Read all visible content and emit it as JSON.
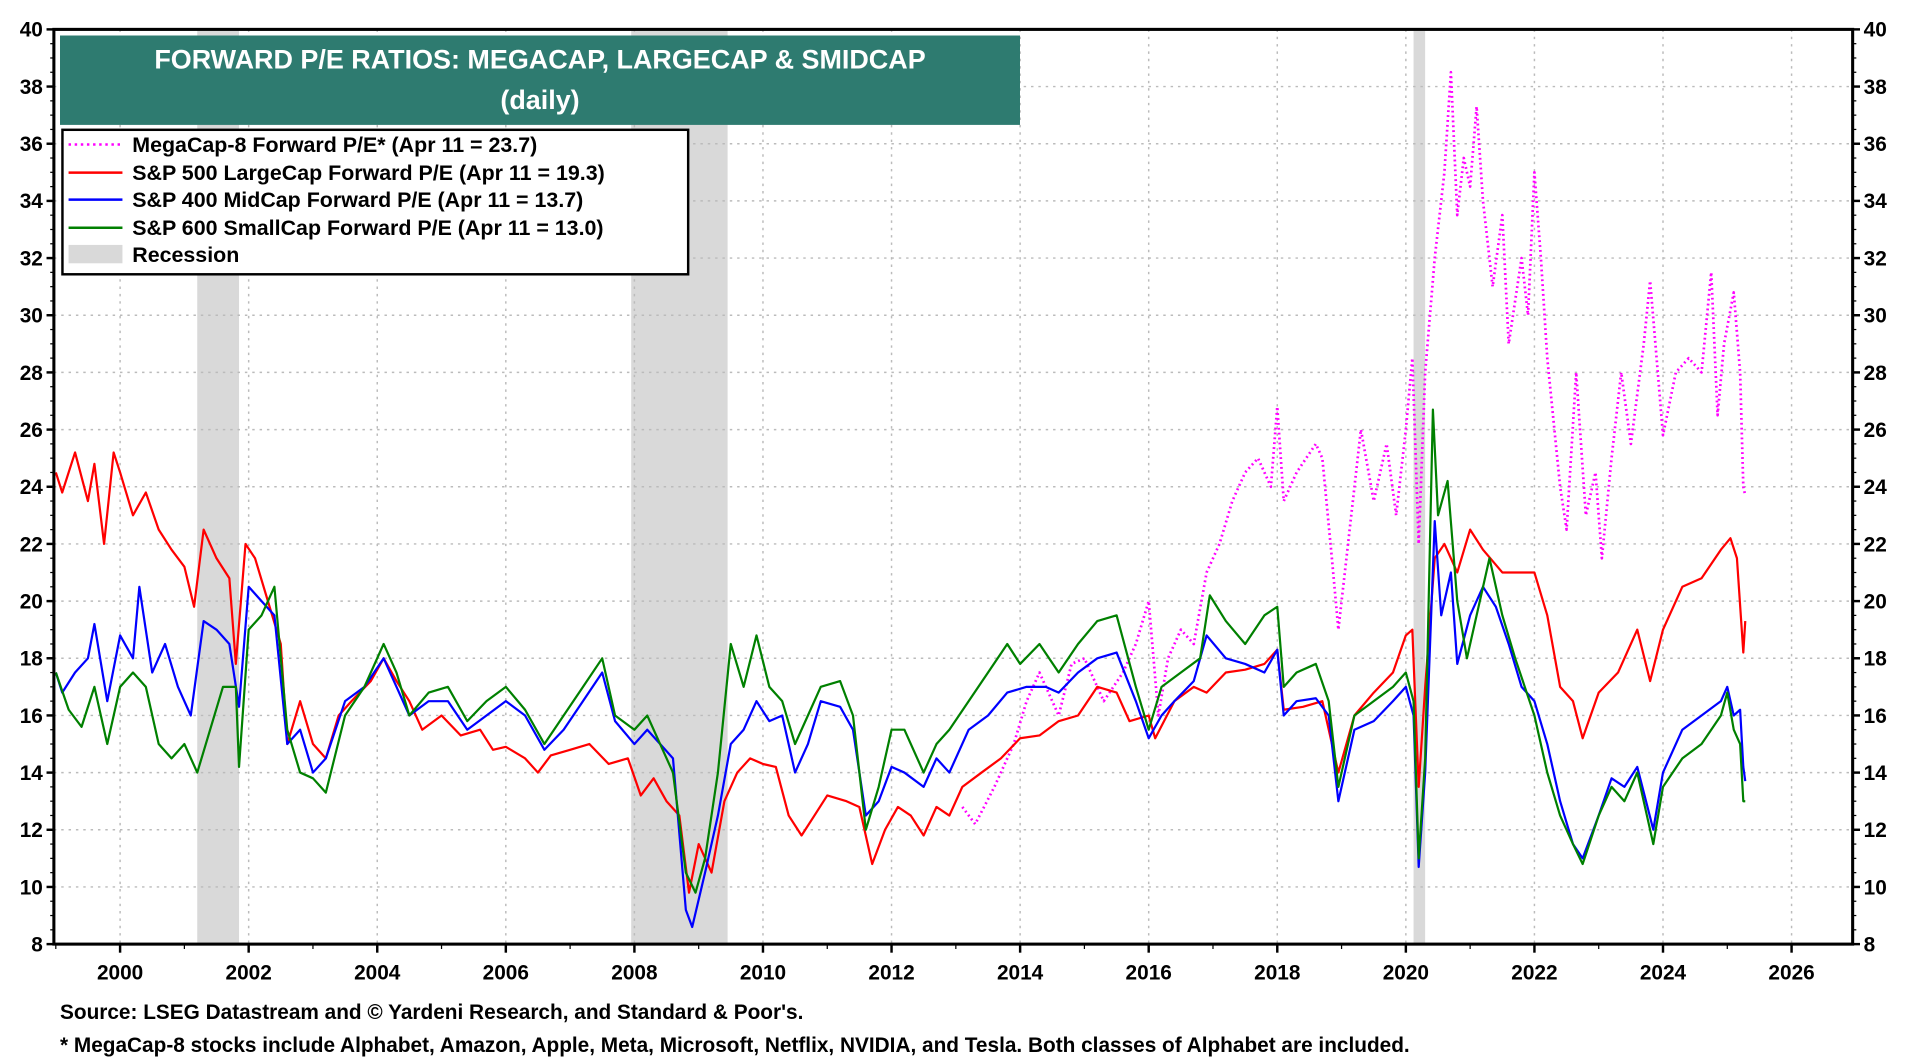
{
  "chart_data": {
    "type": "line",
    "title": "FORWARD P/E RATIOS: MEGACAP, LARGECAP & SMIDCAP",
    "subtitle": "(daily)",
    "xlim": [
      1998.97,
      2026.95
    ],
    "ylim": [
      8,
      40
    ],
    "grid": true,
    "legend_placement": "top-left",
    "x_ticks": [
      2000,
      2002,
      2004,
      2006,
      2008,
      2010,
      2012,
      2014,
      2016,
      2018,
      2020,
      2022,
      2024,
      2026
    ],
    "x_tick_labels": [
      "2000",
      "2002",
      "2004",
      "2006",
      "2008",
      "2010",
      "2012",
      "2014",
      "2016",
      "2018",
      "2020",
      "2022",
      "2024",
      "2026"
    ],
    "y_ticks": [
      8,
      10,
      12,
      14,
      16,
      18,
      20,
      22,
      24,
      26,
      28,
      30,
      32,
      34,
      36,
      38,
      40
    ],
    "y_tick_labels": [
      "8",
      "10",
      "12",
      "14",
      "16",
      "18",
      "20",
      "22",
      "24",
      "26",
      "28",
      "30",
      "32",
      "34",
      "36",
      "38",
      "40"
    ],
    "recessions": [
      [
        2001.2,
        2001.85
      ],
      [
        2007.95,
        2009.45
      ],
      [
        2020.12,
        2020.3
      ]
    ],
    "recession_label": "Recession",
    "recession_color": "#d9d9d9",
    "series": [
      {
        "name": "MegaCap-8 Forward P/E* (Apr 11 = 23.7)",
        "color": "#ff00ff",
        "style": "dotted",
        "x": [
          2013.1,
          2013.3,
          2013.6,
          2013.9,
          2014.1,
          2014.3,
          2014.6,
          2014.8,
          2015.0,
          2015.3,
          2015.6,
          2015.8,
          2016.0,
          2016.15,
          2016.3,
          2016.5,
          2016.7,
          2016.9,
          2017.1,
          2017.3,
          2017.5,
          2017.7,
          2017.9,
          2018.0,
          2018.1,
          2018.3,
          2018.6,
          2018.7,
          2018.85,
          2018.95,
          2019.1,
          2019.3,
          2019.5,
          2019.7,
          2019.85,
          2020.0,
          2020.1,
          2020.2,
          2020.3,
          2020.45,
          2020.6,
          2020.7,
          2020.8,
          2020.9,
          2021.0,
          2021.1,
          2021.2,
          2021.35,
          2021.5,
          2021.6,
          2021.8,
          2021.9,
          2022.0,
          2022.1,
          2022.2,
          2022.4,
          2022.5,
          2022.65,
          2022.8,
          2022.95,
          2023.05,
          2023.2,
          2023.35,
          2023.5,
          2023.7,
          2023.8,
          2023.9,
          2024.0,
          2024.2,
          2024.4,
          2024.6,
          2024.75,
          2024.85,
          2024.95,
          2025.1,
          2025.2,
          2025.25,
          2025.28
        ],
        "y": [
          12.8,
          12.2,
          13.5,
          15.0,
          16.5,
          17.5,
          16.0,
          17.8,
          18.0,
          16.5,
          17.5,
          18.5,
          20.0,
          16.0,
          18.0,
          19.0,
          18.5,
          21.0,
          22.0,
          23.5,
          24.5,
          25.0,
          24.0,
          26.8,
          23.5,
          24.5,
          25.5,
          25.0,
          21.5,
          19.0,
          22.0,
          26.0,
          23.5,
          25.5,
          23.0,
          26.0,
          28.5,
          22.0,
          28.0,
          32.0,
          35.0,
          38.5,
          33.5,
          35.5,
          34.5,
          37.3,
          34.0,
          31.0,
          33.5,
          29.0,
          32.0,
          30.0,
          35.0,
          32.0,
          28.5,
          24.0,
          22.5,
          28.0,
          23.0,
          24.5,
          21.5,
          25.0,
          28.0,
          25.5,
          29.0,
          31.2,
          28.5,
          25.8,
          28.0,
          28.5,
          28.0,
          31.5,
          26.5,
          29.0,
          30.8,
          28.0,
          24.0,
          23.7
        ]
      },
      {
        "name": "S&P 500 LargeCap Forward P/E (Apr 11 = 19.3)",
        "color": "#ff0000",
        "style": "solid",
        "x": [
          1999.0,
          1999.1,
          1999.3,
          1999.5,
          1999.6,
          1999.75,
          1999.9,
          2000.0,
          2000.2,
          2000.4,
          2000.6,
          2000.8,
          2001.0,
          2001.15,
          2001.3,
          2001.5,
          2001.7,
          2001.8,
          2001.95,
          2002.1,
          2002.3,
          2002.5,
          2002.6,
          2002.8,
          2003.0,
          2003.2,
          2003.4,
          2003.6,
          2003.9,
          2004.1,
          2004.3,
          2004.5,
          2004.7,
          2005.0,
          2005.3,
          2005.6,
          2005.8,
          2006.0,
          2006.3,
          2006.5,
          2006.7,
          2007.0,
          2007.3,
          2007.6,
          2007.9,
          2008.1,
          2008.3,
          2008.5,
          2008.7,
          2008.85,
          2009.0,
          2009.2,
          2009.4,
          2009.6,
          2009.8,
          2010.0,
          2010.2,
          2010.4,
          2010.6,
          2010.8,
          2011.0,
          2011.3,
          2011.5,
          2011.7,
          2011.9,
          2012.1,
          2012.3,
          2012.5,
          2012.7,
          2012.9,
          2013.1,
          2013.4,
          2013.7,
          2014.0,
          2014.3,
          2014.6,
          2014.9,
          2015.2,
          2015.5,
          2015.7,
          2016.0,
          2016.1,
          2016.4,
          2016.7,
          2016.9,
          2017.2,
          2017.5,
          2017.8,
          2018.0,
          2018.1,
          2018.4,
          2018.7,
          2018.95,
          2019.2,
          2019.5,
          2019.8,
          2020.0,
          2020.1,
          2020.2,
          2020.3,
          2020.45,
          2020.6,
          2020.8,
          2021.0,
          2021.2,
          2021.5,
          2021.8,
          2022.0,
          2022.2,
          2022.4,
          2022.6,
          2022.75,
          2023.0,
          2023.3,
          2023.6,
          2023.8,
          2024.0,
          2024.3,
          2024.6,
          2024.9,
          2025.05,
          2025.15,
          2025.25,
          2025.28
        ],
        "y": [
          24.5,
          23.8,
          25.2,
          23.5,
          24.8,
          22.0,
          25.2,
          24.5,
          23.0,
          23.8,
          22.5,
          21.8,
          21.2,
          19.8,
          22.5,
          21.5,
          20.8,
          17.8,
          22.0,
          21.5,
          20.0,
          18.5,
          15.0,
          16.5,
          15.0,
          14.5,
          16.0,
          16.5,
          17.2,
          18.0,
          17.2,
          16.5,
          15.5,
          16.0,
          15.3,
          15.5,
          14.8,
          14.9,
          14.5,
          14.0,
          14.6,
          14.8,
          15.0,
          14.3,
          14.5,
          13.2,
          13.8,
          13.0,
          12.5,
          9.8,
          11.5,
          10.5,
          13.0,
          14.0,
          14.5,
          14.3,
          14.2,
          12.5,
          11.8,
          12.5,
          13.2,
          13.0,
          12.8,
          10.8,
          12.0,
          12.8,
          12.5,
          11.8,
          12.8,
          12.5,
          13.5,
          14.0,
          14.5,
          15.2,
          15.3,
          15.8,
          16.0,
          17.0,
          16.8,
          15.8,
          16.0,
          15.2,
          16.5,
          17.0,
          16.8,
          17.5,
          17.6,
          17.8,
          18.3,
          16.2,
          16.3,
          16.5,
          14.0,
          16.0,
          16.8,
          17.5,
          18.8,
          19.0,
          13.5,
          17.0,
          21.5,
          22.0,
          21.0,
          22.5,
          21.8,
          21.0,
          21.0,
          21.0,
          19.5,
          17.0,
          16.5,
          15.2,
          16.8,
          17.5,
          19.0,
          17.2,
          19.0,
          20.5,
          20.8,
          21.8,
          22.2,
          21.5,
          18.2,
          19.3
        ]
      },
      {
        "name": "S&P 400 MidCap Forward P/E (Apr 11 = 13.7)",
        "color": "#0000ff",
        "style": "solid",
        "x": [
          1999.0,
          1999.1,
          1999.3,
          1999.5,
          1999.6,
          1999.8,
          2000.0,
          2000.2,
          2000.3,
          2000.5,
          2000.7,
          2000.9,
          2001.1,
          2001.3,
          2001.5,
          2001.7,
          2001.85,
          2002.0,
          2002.2,
          2002.4,
          2002.6,
          2002.8,
          2003.0,
          2003.2,
          2003.5,
          2003.8,
          2004.1,
          2004.3,
          2004.5,
          2004.8,
          2005.1,
          2005.4,
          2005.7,
          2006.0,
          2006.3,
          2006.6,
          2006.9,
          2007.2,
          2007.5,
          2007.7,
          2008.0,
          2008.2,
          2008.4,
          2008.6,
          2008.8,
          2008.9,
          2009.1,
          2009.3,
          2009.5,
          2009.7,
          2009.9,
          2010.1,
          2010.3,
          2010.5,
          2010.7,
          2010.9,
          2011.2,
          2011.4,
          2011.6,
          2011.8,
          2012.0,
          2012.2,
          2012.5,
          2012.7,
          2012.9,
          2013.2,
          2013.5,
          2013.8,
          2014.1,
          2014.4,
          2014.6,
          2014.9,
          2015.2,
          2015.5,
          2015.8,
          2016.0,
          2016.2,
          2016.4,
          2016.7,
          2016.9,
          2017.2,
          2017.5,
          2017.8,
          2018.0,
          2018.1,
          2018.3,
          2018.6,
          2018.8,
          2018.95,
          2019.2,
          2019.5,
          2019.8,
          2020.0,
          2020.12,
          2020.2,
          2020.3,
          2020.45,
          2020.55,
          2020.7,
          2020.8,
          2021.0,
          2021.2,
          2021.4,
          2021.6,
          2021.8,
          2022.0,
          2022.2,
          2022.4,
          2022.6,
          2022.75,
          2023.0,
          2023.2,
          2023.4,
          2023.6,
          2023.85,
          2024.0,
          2024.3,
          2024.6,
          2024.9,
          2025.0,
          2025.1,
          2025.2,
          2025.25,
          2025.28
        ],
        "y": [
          17.5,
          16.8,
          17.5,
          18.0,
          19.2,
          16.5,
          18.8,
          18.0,
          20.5,
          17.5,
          18.5,
          17.0,
          16.0,
          19.3,
          19.0,
          18.5,
          16.3,
          20.5,
          20.0,
          19.5,
          15.0,
          15.5,
          14.0,
          14.5,
          16.5,
          17.0,
          18.0,
          17.0,
          16.0,
          16.5,
          16.5,
          15.5,
          16.0,
          16.5,
          16.0,
          14.8,
          15.5,
          16.5,
          17.5,
          15.8,
          15.0,
          15.5,
          15.0,
          14.5,
          9.2,
          8.6,
          10.5,
          12.5,
          15.0,
          15.5,
          16.5,
          15.8,
          16.0,
          14.0,
          15.0,
          16.5,
          16.3,
          15.5,
          12.5,
          13.0,
          14.2,
          14.0,
          13.5,
          14.5,
          14.0,
          15.5,
          16.0,
          16.8,
          17.0,
          17.0,
          16.8,
          17.5,
          18.0,
          18.2,
          16.5,
          15.2,
          16.0,
          16.5,
          17.2,
          18.8,
          18.0,
          17.8,
          17.5,
          18.3,
          16.0,
          16.5,
          16.6,
          16.0,
          13.0,
          15.5,
          15.8,
          16.5,
          17.0,
          16.0,
          10.7,
          14.0,
          22.8,
          19.5,
          21.0,
          17.8,
          19.5,
          20.5,
          19.8,
          18.5,
          17.0,
          16.5,
          15.0,
          13.0,
          11.5,
          11.0,
          12.5,
          13.8,
          13.5,
          14.2,
          12.0,
          14.0,
          15.5,
          16.0,
          16.5,
          17.0,
          16.0,
          16.2,
          14.2,
          13.7
        ]
      },
      {
        "name": "S&P 600 SmallCap Forward P/E (Apr 11 = 13.0)",
        "color": "#008000",
        "style": "solid",
        "x": [
          1999.0,
          1999.2,
          1999.4,
          1999.6,
          1999.8,
          2000.0,
          2000.2,
          2000.4,
          2000.6,
          2000.8,
          2001.0,
          2001.2,
          2001.4,
          2001.6,
          2001.8,
          2001.85,
          2002.0,
          2002.2,
          2002.4,
          2002.6,
          2002.8,
          2003.0,
          2003.2,
          2003.5,
          2003.8,
          2004.1,
          2004.3,
          2004.5,
          2004.8,
          2005.1,
          2005.4,
          2005.7,
          2006.0,
          2006.3,
          2006.6,
          2006.9,
          2007.2,
          2007.5,
          2007.7,
          2008.0,
          2008.2,
          2008.4,
          2008.6,
          2008.8,
          2008.95,
          2009.1,
          2009.3,
          2009.5,
          2009.7,
          2009.9,
          2010.1,
          2010.3,
          2010.5,
          2010.7,
          2010.9,
          2011.2,
          2011.4,
          2011.6,
          2011.8,
          2012.0,
          2012.2,
          2012.5,
          2012.7,
          2012.9,
          2013.2,
          2013.5,
          2013.8,
          2014.0,
          2014.3,
          2014.6,
          2014.9,
          2015.2,
          2015.5,
          2015.8,
          2016.0,
          2016.2,
          2016.5,
          2016.8,
          2016.95,
          2017.2,
          2017.5,
          2017.8,
          2018.0,
          2018.1,
          2018.3,
          2018.6,
          2018.8,
          2018.95,
          2019.2,
          2019.5,
          2019.8,
          2020.0,
          2020.12,
          2020.2,
          2020.3,
          2020.42,
          2020.5,
          2020.65,
          2020.8,
          2020.95,
          2021.1,
          2021.3,
          2021.5,
          2021.7,
          2022.0,
          2022.2,
          2022.4,
          2022.6,
          2022.75,
          2023.0,
          2023.2,
          2023.4,
          2023.6,
          2023.85,
          2024.0,
          2024.3,
          2024.6,
          2024.9,
          2025.0,
          2025.1,
          2025.2,
          2025.25,
          2025.28
        ],
        "y": [
          17.5,
          16.2,
          15.6,
          17.0,
          15.0,
          17.0,
          17.5,
          17.0,
          15.0,
          14.5,
          15.0,
          14.0,
          15.5,
          17.0,
          17.0,
          14.2,
          19.0,
          19.5,
          20.5,
          15.5,
          14.0,
          13.8,
          13.3,
          16.0,
          17.0,
          18.5,
          17.5,
          16.0,
          16.8,
          17.0,
          15.8,
          16.5,
          17.0,
          16.2,
          15.0,
          16.0,
          17.0,
          18.0,
          16.0,
          15.5,
          16.0,
          15.0,
          14.0,
          10.5,
          9.8,
          11.0,
          14.0,
          18.5,
          17.0,
          18.8,
          17.0,
          16.5,
          15.0,
          16.0,
          17.0,
          17.2,
          16.0,
          12.0,
          13.5,
          15.5,
          15.5,
          14.0,
          15.0,
          15.5,
          16.5,
          17.5,
          18.5,
          17.8,
          18.5,
          17.5,
          18.5,
          19.3,
          19.5,
          17.0,
          15.5,
          17.0,
          17.5,
          18.0,
          20.2,
          19.3,
          18.5,
          19.5,
          19.8,
          17.0,
          17.5,
          17.8,
          16.5,
          13.5,
          16.0,
          16.5,
          17.0,
          17.5,
          16.5,
          11.0,
          14.5,
          26.7,
          23.0,
          24.2,
          20.0,
          18.0,
          19.5,
          21.5,
          19.5,
          18.0,
          16.0,
          14.0,
          12.5,
          11.5,
          10.8,
          12.5,
          13.5,
          13.0,
          14.0,
          11.5,
          13.5,
          14.5,
          15.0,
          16.0,
          16.8,
          15.5,
          15.0,
          13.0,
          13.0
        ]
      }
    ]
  },
  "title_box": {
    "color": "#2e7b70"
  },
  "footer": {
    "source": "Source: LSEG Datastream and © Yardeni Research, and Standard & Poor's.",
    "note": "* MegaCap-8 stocks include Alphabet, Amazon, Apple, Meta, Microsoft, Netflix, NVIDIA, and Tesla. Both classes of Alphabet are included."
  }
}
